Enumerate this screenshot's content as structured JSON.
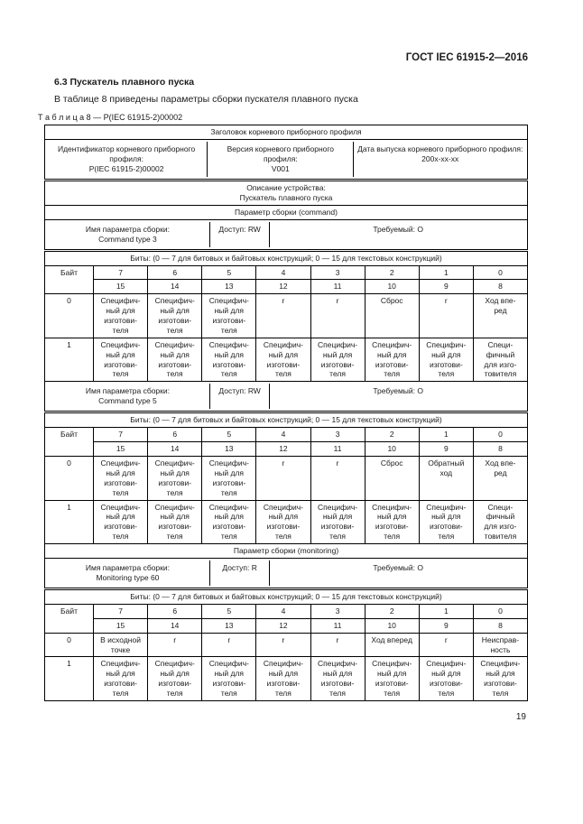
{
  "page": {
    "header": "ГОСТ IEC 61915-2—2016",
    "section_heading": "6.3 Пускатель плавного пуска",
    "intro_text": "В таблице 8 приведены параметры сборки пускателя плавного пуска",
    "table_caption": "Т а б л и ц а  8 — P(IEC 61915-2)00002",
    "page_number": "19"
  },
  "table": {
    "profile_header_title": "Заголовок корневого приборного профиля",
    "profile_cells": [
      {
        "label": "Идентификатор корневого приборного профиля:",
        "value": "P(IEC 61915-2)00002"
      },
      {
        "label": "Версия корневого приборного профиля:",
        "value": "V001"
      },
      {
        "label": "Дата выпуска корневого приборного профиля:",
        "value": "200x-xx-xx"
      }
    ],
    "device_description": {
      "label": "Описание устройства:",
      "value": "Пускатель плавного пуска"
    },
    "byte_label": "Байт",
    "bits_header": "Биты: (0 — 7 для битовых и байтовых конструкций; 0 — 15 для текстовых конструкций)",
    "bit_numbers_high": [
      "7",
      "6",
      "5",
      "4",
      "3",
      "2",
      "1",
      "0"
    ],
    "bit_numbers_low": [
      "15",
      "14",
      "13",
      "12",
      "11",
      "10",
      "9",
      "8"
    ],
    "sections": [
      {
        "title": "Параметр сборки (command)",
        "parameters": [
          {
            "name_label": "Имя параметра сборки:",
            "name_value": "Command type 3",
            "access": "Доступ: RW",
            "required": "Требуемый: O",
            "byte_rows": [
              {
                "byte": "0",
                "cells": [
                  "Специфич-\nный для\nизготови-\nтеля",
                  "Специфич-\nный для\nизготови-\nтеля",
                  "Специфич-\nный для\nизготови-\nтеля",
                  "r",
                  "r",
                  "Сброс",
                  "r",
                  "Ход впе-\nред"
                ]
              },
              {
                "byte": "1",
                "cells": [
                  "Специфич-\nный для\nизготови-\nтеля",
                  "Специфич-\nный для\nизготови-\nтеля",
                  "Специфич-\nный для\nизготови-\nтеля",
                  "Специфич-\nный для\nизготови-\nтеля",
                  "Специфич-\nный для\nизготови-\nтеля",
                  "Специфич-\nный для\nизготови-\nтеля",
                  "Специфич-\nный для\nизготови-\nтеля",
                  "Специ-\nфичный\nдля изго-\nтовителя"
                ]
              }
            ]
          },
          {
            "name_label": "Имя параметра сборки:",
            "name_value": "Command type 5",
            "access": "Доступ: RW",
            "required": "Требуемый: O",
            "byte_rows": [
              {
                "byte": "0",
                "cells": [
                  "Специфич-\nный для\nизготови-\nтеля",
                  "Специфич-\nный для\nизготови-\nтеля",
                  "Специфич-\nный для\nизготови-\nтеля",
                  "r",
                  "r",
                  "Сброс",
                  "Обратный\nход",
                  "Ход впе-\nред"
                ]
              },
              {
                "byte": "1",
                "cells": [
                  "Специфич-\nный для\nизготови-\nтеля",
                  "Специфич-\nный для\nизготови-\nтеля",
                  "Специфич-\nный для\nизготови-\nтеля",
                  "Специфич-\nный для\nизготови-\nтеля",
                  "Специфич-\nный для\nизготови-\nтеля",
                  "Специфич-\nный для\nизготови-\nтеля",
                  "Специфич-\nный для\nизготови-\nтеля",
                  "Специ-\nфичный\nдля изго-\nтовителя"
                ]
              }
            ]
          }
        ]
      },
      {
        "title": "Параметр сборки (monitoring)",
        "parameters": [
          {
            "name_label": "Имя параметра сборки:",
            "name_value": "Monitoring type 60",
            "access": "Доступ: R",
            "required": "Требуемый: O",
            "byte_rows": [
              {
                "byte": "0",
                "cells": [
                  "В исходной\nточке",
                  "r",
                  "r",
                  "r",
                  "r",
                  "Ход вперед",
                  "r",
                  "Неисправ-\nность"
                ]
              },
              {
                "byte": "1",
                "cells": [
                  "Специфич-\nный для\nизготови-\nтеля",
                  "Специфич-\nный для\nизготови-\nтеля",
                  "Специфич-\nный для\nизготови-\nтеля",
                  "Специфич-\nный для\nизготови-\nтеля",
                  "Специфич-\nный для\nизготови-\nтеля",
                  "Специфич-\nный для\nизготови-\nтеля",
                  "Специфич-\nный для\nизготови-\nтеля",
                  "Специфич-\nный для\nизготови-\nтеля"
                ]
              }
            ]
          }
        ]
      }
    ]
  }
}
